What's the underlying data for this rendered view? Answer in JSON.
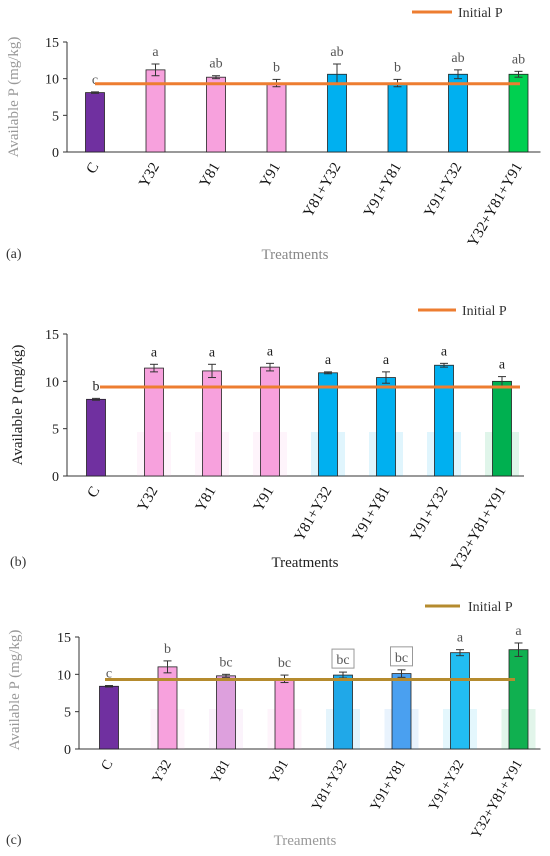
{
  "chart_data": [
    {
      "type": "bar",
      "panel_label": "(a)",
      "categories": [
        "C",
        "Y32",
        "Y81",
        "Y91",
        "Y81+Y32",
        "Y91+Y81",
        "Y91+Y32",
        "Y32+Y81+Y91"
      ],
      "values": [
        8.1,
        11.2,
        10.2,
        9.4,
        10.6,
        9.4,
        10.6,
        10.6
      ],
      "errors": [
        0.1,
        0.8,
        0.2,
        0.5,
        1.4,
        0.5,
        0.6,
        0.4
      ],
      "letters": [
        "c",
        "a",
        "ab",
        "b",
        "ab",
        "b",
        "ab",
        "ab"
      ],
      "colors": [
        "#7030A0",
        "#F7A1DD",
        "#F7A1DD",
        "#F7A1DD",
        "#00B0F0",
        "#00B0F0",
        "#00B0F0",
        "#00D050"
      ],
      "reference": {
        "label": "Initial P",
        "value": 9.3,
        "color": "#ED7D31"
      },
      "xlabel": "Treatments",
      "ylabel": "Available P (mg/kg)",
      "ylim": [
        0,
        15
      ],
      "yticks": [
        "0",
        "5",
        "10",
        "15"
      ],
      "grid": false,
      "legend": "top-right"
    },
    {
      "type": "bar",
      "panel_label": "(b)",
      "categories": [
        "C",
        "Y32",
        "Y81",
        "Y91",
        "Y81+Y32",
        "Y91+Y81",
        "Y91+Y32",
        "Y32+Y81+Y91"
      ],
      "values": [
        8.1,
        11.4,
        11.1,
        11.5,
        10.9,
        10.4,
        11.7,
        10.0
      ],
      "errors": [
        0.1,
        0.4,
        0.7,
        0.4,
        0.1,
        0.6,
        0.2,
        0.5
      ],
      "letters": [
        "b",
        "a",
        "a",
        "a",
        "a",
        "a",
        "a",
        "a"
      ],
      "colors": [
        "#7030A0",
        "#F7A1DD",
        "#F7A1DD",
        "#F7A1DD",
        "#00B0F0",
        "#00B0F0",
        "#00B0F0",
        "#00B050"
      ],
      "reference": {
        "label": "Initial P",
        "value": 9.4,
        "color": "#ED7D31"
      },
      "xlabel": "Treatments",
      "ylabel": "Available P (mg/kg)",
      "ylim": [
        0,
        15
      ],
      "yticks": [
        "0",
        "5",
        "10",
        "15"
      ],
      "grid": false,
      "legend": "top-right"
    },
    {
      "type": "bar",
      "panel_label": "(c)",
      "categories": [
        "C",
        "Y32",
        "Y81",
        "Y91",
        "Y81+Y32",
        "Y91+Y81",
        "Y91+Y32",
        "Y32+Y81+Y91"
      ],
      "values": [
        8.4,
        11.0,
        9.8,
        9.4,
        9.9,
        10.1,
        12.9,
        13.3
      ],
      "errors": [
        0.1,
        0.8,
        0.2,
        0.5,
        0.4,
        0.5,
        0.4,
        0.9
      ],
      "letters": [
        "c",
        "b",
        "bc",
        "bc",
        "bc",
        "bc",
        "a",
        "a"
      ],
      "boxed_letters": [
        4,
        5
      ],
      "colors": [
        "#7030A0",
        "#F7A1DD",
        "#DDA0DD",
        "#F7A1DD",
        "#20A8E8",
        "#4AA0F0",
        "#22BDF2",
        "#10B050"
      ],
      "reference": {
        "label": "Initial P",
        "value": 9.3,
        "color": "#B58B2E"
      },
      "xlabel": "Treaments",
      "ylabel": "Available P (mg/kg)",
      "ylim": [
        0,
        15
      ],
      "yticks": [
        "0",
        "5",
        "10",
        "15"
      ],
      "grid": false,
      "legend": "top-right"
    }
  ]
}
